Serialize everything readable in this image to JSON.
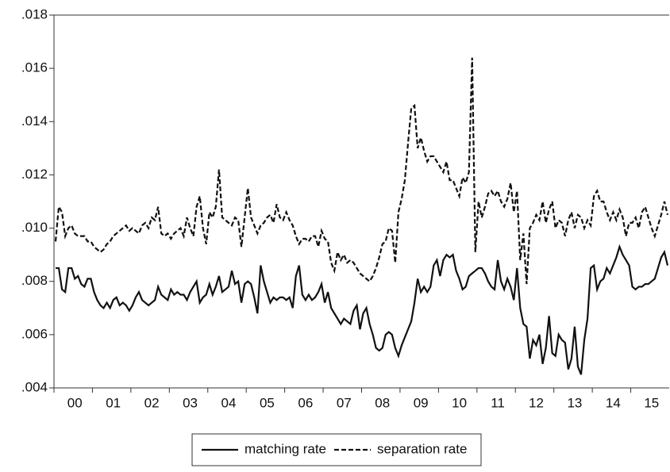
{
  "chart_data": {
    "type": "line",
    "categories": [
      null,
      null,
      null,
      null,
      null,
      null,
      "00",
      null,
      null,
      null,
      null,
      null,
      null,
      null,
      null,
      null,
      null,
      null,
      "01",
      null,
      null,
      null,
      null,
      null,
      null,
      null,
      null,
      null,
      null,
      null,
      "02",
      null,
      null,
      null,
      null,
      null,
      null,
      null,
      null,
      null,
      null,
      null,
      "03",
      null,
      null,
      null,
      null,
      null,
      null,
      null,
      null,
      null,
      null,
      null,
      "04",
      null,
      null,
      null,
      null,
      null,
      null,
      null,
      null,
      null,
      null,
      null,
      "05",
      null,
      null,
      null,
      null,
      null,
      null,
      null,
      null,
      null,
      null,
      null,
      "06",
      null,
      null,
      null,
      null,
      null,
      null,
      null,
      null,
      null,
      null,
      null,
      "07",
      null,
      null,
      null,
      null,
      null,
      null,
      null,
      null,
      null,
      null,
      null,
      "08",
      null,
      null,
      null,
      null,
      null,
      null,
      null,
      null,
      null,
      null,
      null,
      "09",
      null,
      null,
      null,
      null,
      null,
      null,
      null,
      null,
      null,
      null,
      null,
      "10",
      null,
      null,
      null,
      null,
      null,
      null,
      null,
      null,
      null,
      null,
      null,
      "11",
      null,
      null,
      null,
      null,
      null,
      null,
      null,
      null,
      null,
      null,
      null,
      "12",
      null,
      null,
      null,
      null,
      null,
      null,
      null,
      null,
      null,
      null,
      null,
      "13",
      null,
      null,
      null,
      null,
      null,
      null,
      null,
      null,
      null,
      null,
      null,
      "14",
      null,
      null,
      null,
      null,
      null,
      null,
      null,
      null,
      null,
      null,
      null,
      "15",
      null,
      null,
      null,
      null,
      null
    ],
    "series": [
      {
        "name": "matching rate",
        "color": "#111111",
        "dash": "solid",
        "values": [
          0.0085,
          0.0085,
          0.0077,
          0.0076,
          0.0085,
          0.0085,
          0.0081,
          0.0082,
          0.0079,
          0.0078,
          0.0081,
          0.0081,
          0.0076,
          0.0073,
          0.0071,
          0.007,
          0.0072,
          0.007,
          0.0073,
          0.0074,
          0.0071,
          0.0072,
          0.0071,
          0.0069,
          0.0071,
          0.0074,
          0.0076,
          0.0073,
          0.0072,
          0.0071,
          0.0072,
          0.0073,
          0.0078,
          0.0075,
          0.0074,
          0.0073,
          0.0077,
          0.0075,
          0.0076,
          0.0075,
          0.0075,
          0.0073,
          0.0076,
          0.0078,
          0.008,
          0.0072,
          0.0074,
          0.0075,
          0.0079,
          0.0075,
          0.0078,
          0.0082,
          0.0076,
          0.0077,
          0.0078,
          0.0084,
          0.0079,
          0.008,
          0.0072,
          0.0079,
          0.008,
          0.0079,
          0.0074,
          0.0068,
          0.0086,
          0.008,
          0.0076,
          0.0072,
          0.0074,
          0.0073,
          0.0074,
          0.0074,
          0.0073,
          0.0074,
          0.007,
          0.0082,
          0.0086,
          0.0075,
          0.0073,
          0.0075,
          0.0073,
          0.0074,
          0.0076,
          0.0079,
          0.0072,
          0.0076,
          0.007,
          0.0068,
          0.0066,
          0.0064,
          0.0066,
          0.0065,
          0.0064,
          0.0069,
          0.0071,
          0.0062,
          0.0068,
          0.007,
          0.0064,
          0.006,
          0.0055,
          0.0054,
          0.0055,
          0.006,
          0.0061,
          0.006,
          0.0055,
          0.0052,
          0.0056,
          0.0059,
          0.0062,
          0.0065,
          0.0072,
          0.0081,
          0.0076,
          0.0078,
          0.0076,
          0.0078,
          0.0086,
          0.0088,
          0.0082,
          0.0088,
          0.009,
          0.0089,
          0.009,
          0.0084,
          0.0081,
          0.0077,
          0.0078,
          0.0082,
          0.0083,
          0.0084,
          0.0085,
          0.0085,
          0.0083,
          0.008,
          0.0078,
          0.0077,
          0.0088,
          0.008,
          0.0077,
          0.0081,
          0.0078,
          0.0073,
          0.0085,
          0.007,
          0.0064,
          0.0063,
          0.0051,
          0.0058,
          0.0056,
          0.006,
          0.0049,
          0.0055,
          0.0067,
          0.0053,
          0.0052,
          0.006,
          0.0058,
          0.0057,
          0.0047,
          0.0051,
          0.0063,
          0.0048,
          0.0045,
          0.0058,
          0.0066,
          0.0085,
          0.0086,
          0.0077,
          0.008,
          0.0081,
          0.0085,
          0.0083,
          0.0086,
          0.0089,
          0.0093,
          0.009,
          0.0088,
          0.0086,
          0.0078,
          0.0077,
          0.0078,
          0.0078,
          0.0079,
          0.0079,
          0.008,
          0.0081,
          0.0085,
          0.0089,
          0.0091,
          0.0086
        ]
      },
      {
        "name": "separation rate",
        "color": "#111111",
        "dash": "dashed",
        "values": [
          0.0095,
          0.0108,
          0.0106,
          0.0097,
          0.01,
          0.0101,
          0.0098,
          0.0097,
          0.0097,
          0.0097,
          0.0095,
          0.0095,
          0.0093,
          0.0092,
          0.0091,
          0.0092,
          0.0094,
          0.0095,
          0.0097,
          0.0098,
          0.0099,
          0.01,
          0.0101,
          0.0099,
          0.01,
          0.0099,
          0.0098,
          0.0101,
          0.0102,
          0.01,
          0.0104,
          0.0103,
          0.0108,
          0.0098,
          0.0097,
          0.0098,
          0.0096,
          0.0098,
          0.0099,
          0.01,
          0.0097,
          0.0104,
          0.01,
          0.0097,
          0.0108,
          0.0112,
          0.01,
          0.0094,
          0.0106,
          0.0104,
          0.0108,
          0.0122,
          0.0104,
          0.0103,
          0.0102,
          0.0101,
          0.0104,
          0.0103,
          0.0093,
          0.0104,
          0.0115,
          0.0104,
          0.0101,
          0.0098,
          0.0101,
          0.0102,
          0.0104,
          0.0105,
          0.0102,
          0.0109,
          0.0104,
          0.0103,
          0.0106,
          0.0103,
          0.0101,
          0.0097,
          0.0094,
          0.0096,
          0.0096,
          0.0095,
          0.0097,
          0.0097,
          0.0093,
          0.0099,
          0.0096,
          0.0095,
          0.0087,
          0.0084,
          0.0091,
          0.0088,
          0.009,
          0.0087,
          0.0088,
          0.0087,
          0.0085,
          0.0083,
          0.0082,
          0.0081,
          0.008,
          0.0082,
          0.0085,
          0.0089,
          0.0094,
          0.0095,
          0.01,
          0.0099,
          0.0087,
          0.0106,
          0.0111,
          0.0118,
          0.0132,
          0.0145,
          0.0146,
          0.013,
          0.0134,
          0.0129,
          0.0125,
          0.0127,
          0.0127,
          0.0125,
          0.0123,
          0.0121,
          0.0125,
          0.0118,
          0.0118,
          0.0115,
          0.0112,
          0.0119,
          0.0117,
          0.0121,
          0.0164,
          0.0091,
          0.011,
          0.0104,
          0.0108,
          0.0113,
          0.0114,
          0.0112,
          0.0114,
          0.011,
          0.0108,
          0.0111,
          0.0117,
          0.0106,
          0.0114,
          0.0088,
          0.0098,
          0.0079,
          0.01,
          0.0102,
          0.0105,
          0.0103,
          0.011,
          0.0102,
          0.0107,
          0.011,
          0.01,
          0.0103,
          0.0102,
          0.0097,
          0.0103,
          0.0106,
          0.01,
          0.0105,
          0.0104,
          0.01,
          0.0103,
          0.0101,
          0.0112,
          0.0114,
          0.011,
          0.011,
          0.0106,
          0.0103,
          0.0106,
          0.0103,
          0.0107,
          0.0104,
          0.0097,
          0.0102,
          0.0102,
          0.0104,
          0.01,
          0.0106,
          0.0108,
          0.0104,
          0.01,
          0.0097,
          0.0101,
          0.0105,
          0.011,
          0.0105
        ]
      }
    ],
    "ylim": [
      0.004,
      0.018
    ],
    "yticks": [
      {
        "value": 0.004,
        "label": ".004"
      },
      {
        "value": 0.006,
        "label": ".006"
      },
      {
        "value": 0.008,
        "label": ".008"
      },
      {
        "value": 0.01,
        "label": ".010"
      },
      {
        "value": 0.012,
        "label": ".012"
      },
      {
        "value": 0.014,
        "label": ".014"
      },
      {
        "value": 0.016,
        "label": ".016"
      },
      {
        "value": 0.018,
        "label": ".018"
      }
    ],
    "legend": "bottom"
  }
}
